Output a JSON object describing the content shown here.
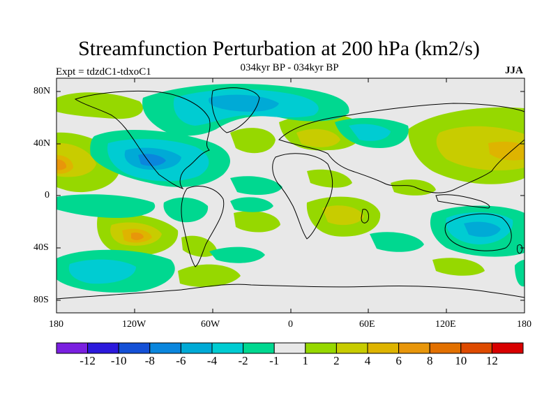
{
  "title": "Streamfunction Perturbation at 200 hPa (km2/s)",
  "subtitle_left": "Expt = tdzdC1-tdxoC1",
  "subtitle_center": "034kyr BP - 034kyr BP",
  "subtitle_right": "JJA",
  "lat_labels": [
    "80N",
    "40N",
    "0",
    "40S",
    "80S"
  ],
  "lon_labels": [
    "180",
    "120W",
    "60W",
    "0",
    "60E",
    "120E",
    "180"
  ],
  "colorbar": {
    "labels": [
      "-12",
      "-10",
      "-8",
      "-6",
      "-4",
      "-2",
      "-1",
      "1",
      "2",
      "4",
      "6",
      "8",
      "10",
      "12"
    ],
    "colors": [
      "#7a1fe0",
      "#2c19dc",
      "#1450d6",
      "#0a86dd",
      "#00aad6",
      "#00ccd2",
      "#00d890",
      "#e8e8e8",
      "#96d800",
      "#c8cc00",
      "#deb400",
      "#e8960a",
      "#e27000",
      "#de4a00",
      "#d80000"
    ]
  }
}
